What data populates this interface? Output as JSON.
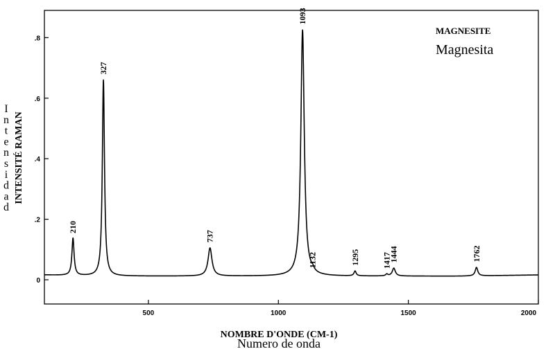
{
  "chart_data": {
    "type": "line",
    "title": "MAGNESITE",
    "subtitle": "Magnesita",
    "xlabel": "NOMBRE D'ONDE (CM-1)",
    "xlabel_es": "Numero de onda",
    "ylabel": "INTENSITÉ RAMAN",
    "ylabel_es": "Intensidad",
    "xlim": [
      100,
      2000
    ],
    "ylim": [
      -0.08,
      0.89
    ],
    "x_ticks": [
      500,
      1000,
      1500,
      2000
    ],
    "y_ticks": [
      0,
      0.2,
      0.4,
      0.6,
      0.8
    ],
    "x_tick_labels": [
      "500",
      "1000",
      "1500",
      "2000"
    ],
    "y_tick_labels": [
      "0",
      ".2",
      ".4",
      ".6",
      ".8"
    ],
    "grid": false,
    "baseline": 0.012,
    "peaks": [
      {
        "x": 210,
        "y": 0.135,
        "width": 5,
        "label": "210"
      },
      {
        "x": 327,
        "y": 0.66,
        "width": 5,
        "label": "327"
      },
      {
        "x": 737,
        "y": 0.105,
        "width": 9,
        "label": "737"
      },
      {
        "x": 1093,
        "y": 0.825,
        "width": 8,
        "label": "1093"
      },
      {
        "x": 1132,
        "y": 0.02,
        "width": 6,
        "label": "1132"
      },
      {
        "x": 1295,
        "y": 0.028,
        "width": 5,
        "label": "1295"
      },
      {
        "x": 1417,
        "y": 0.018,
        "width": 5,
        "label": "1417"
      },
      {
        "x": 1444,
        "y": 0.038,
        "width": 7,
        "label": "1444"
      },
      {
        "x": 1762,
        "y": 0.04,
        "width": 6,
        "label": "1762"
      }
    ]
  }
}
